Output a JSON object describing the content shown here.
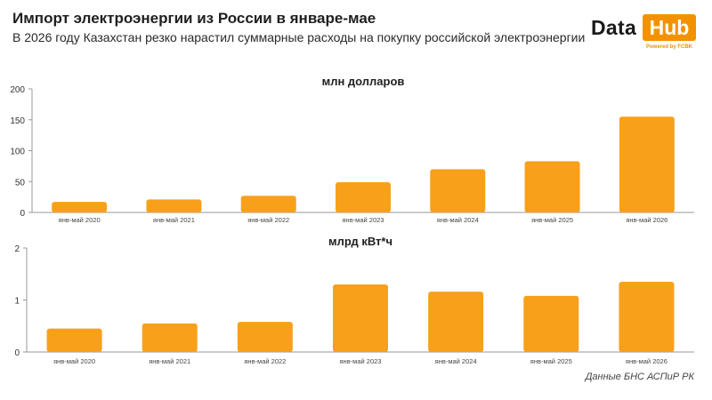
{
  "header": {
    "title": "Импорт электроэнергии из России в январе-мае",
    "subtitle": "В 2026 году Казахстан резко нарастил суммарные расходы на покупку российской электроэнергии"
  },
  "logo": {
    "word1": "Data",
    "word2": "Hub",
    "tagline": "Powered by FCBK"
  },
  "source": "Данные БНС АСПиР РК",
  "colors": {
    "bar": "#f9a01b",
    "brand": "#f39200",
    "axis": "#999999"
  },
  "chart_data": [
    {
      "type": "bar",
      "title": "млн долларов",
      "categories": [
        "янв-май 2020",
        "янв-май 2021",
        "янв-май 2022",
        "янв-май 2023",
        "янв-май 2024",
        "янв-май 2025",
        "янв-май 2026"
      ],
      "values": [
        17,
        21,
        27,
        49,
        70,
        83,
        155
      ],
      "ylim": [
        0,
        200
      ],
      "yticks": [
        0,
        50,
        100,
        150,
        200
      ],
      "grid": false
    },
    {
      "type": "bar",
      "title": "млрд кВт*ч",
      "categories": [
        "янв-май 2020",
        "янв-май 2021",
        "янв-май 2022",
        "янв-май 2023",
        "янв-май 2024",
        "янв-май 2025",
        "янв-май 2026"
      ],
      "values": [
        0.45,
        0.55,
        0.58,
        1.3,
        1.16,
        1.08,
        1.35
      ],
      "ylim": [
        0,
        2
      ],
      "yticks": [
        0,
        1,
        2
      ],
      "grid": false
    }
  ]
}
